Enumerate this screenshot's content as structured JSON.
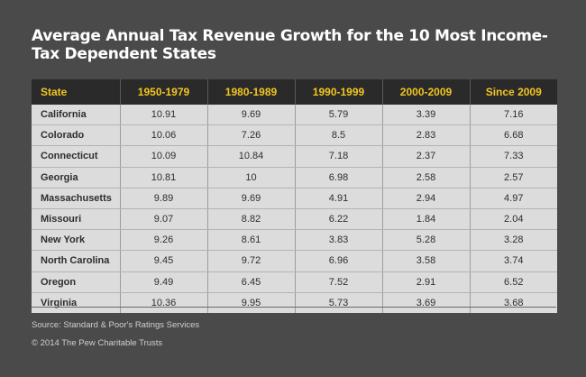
{
  "chart_data": {
    "type": "table",
    "title": "Average Annual Tax Revenue Growth for the 10 Most Income-Tax Dependent States",
    "columns": [
      "State",
      "1950-1979",
      "1980-1989",
      "1990-1999",
      "2000-2009",
      "Since 2009"
    ],
    "rows": [
      [
        "California",
        "10.91",
        "9.69",
        "5.79",
        "3.39",
        "7.16"
      ],
      [
        "Colorado",
        "10.06",
        "7.26",
        "8.5",
        "2.83",
        "6.68"
      ],
      [
        "Connecticut",
        "10.09",
        "10.84",
        "7.18",
        "2.37",
        "7.33"
      ],
      [
        "Georgia",
        "10.81",
        "10",
        "6.98",
        "2.58",
        "2.57"
      ],
      [
        "Massachusetts",
        "9.89",
        "9.69",
        "4.91",
        "2.94",
        "4.97"
      ],
      [
        "Missouri",
        "9.07",
        "8.82",
        "6.22",
        "1.84",
        "2.04"
      ],
      [
        "New York",
        "9.26",
        "8.61",
        "3.83",
        "5.28",
        "3.28"
      ],
      [
        "North Carolina",
        "9.45",
        "9.72",
        "6.96",
        "3.58",
        "3.74"
      ],
      [
        "Oregon",
        "9.49",
        "6.45",
        "7.52",
        "2.91",
        "6.52"
      ],
      [
        "Virginia",
        "10.36",
        "9.95",
        "5.73",
        "3.69",
        "3.68"
      ]
    ],
    "source": "Source:  Standard & Poor's Ratings Services",
    "copyright": "© 2014 The Pew Charitable Trusts"
  },
  "colors": {
    "background": "#4a4a4a",
    "header_background": "#2a2a2a",
    "header_text": "#f2c521",
    "cell_background": "#dcdcdc"
  }
}
